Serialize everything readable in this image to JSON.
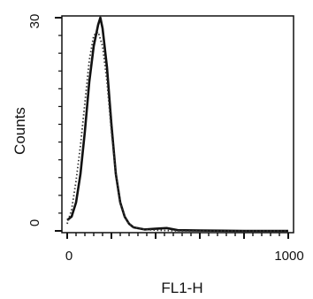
{
  "chart_data": {
    "type": "line",
    "title": "",
    "xlabel": "FL1-H",
    "ylabel": "Counts",
    "xlim": [
      0,
      1000
    ],
    "ylim": [
      0,
      30
    ],
    "x_tick_labels": [
      {
        "value": 0,
        "label": "0"
      },
      {
        "value": 1000,
        "label": "1000"
      }
    ],
    "y_tick_labels": [
      {
        "value": 0,
        "label": "0"
      },
      {
        "value": 30,
        "label": "30"
      }
    ],
    "grid": false,
    "legend": "none",
    "series": [
      {
        "style": "solid",
        "color": "#111111",
        "x": [
          0,
          20,
          40,
          60,
          80,
          100,
          120,
          140,
          150,
          160,
          180,
          200,
          220,
          240,
          260,
          280,
          300,
          350,
          400,
          450,
          500,
          600,
          800,
          1000
        ],
        "values": [
          1.5,
          2,
          4,
          8,
          14,
          21,
          26,
          29,
          30,
          28.5,
          23,
          15,
          8,
          4,
          2,
          1,
          0.5,
          0.2,
          0.3,
          0.4,
          0.1,
          0.05,
          0,
          0
        ]
      },
      {
        "style": "dotted",
        "color": "#333333",
        "x": [
          0,
          20,
          40,
          60,
          80,
          100,
          120,
          140,
          160,
          180,
          200,
          220,
          240,
          260,
          280,
          300,
          350,
          400,
          500,
          1000
        ],
        "values": [
          1,
          3,
          7,
          12,
          18,
          24,
          27.5,
          28,
          26,
          21,
          14,
          8,
          4,
          2,
          1,
          0.5,
          0.2,
          0.1,
          0,
          0
        ]
      }
    ]
  }
}
